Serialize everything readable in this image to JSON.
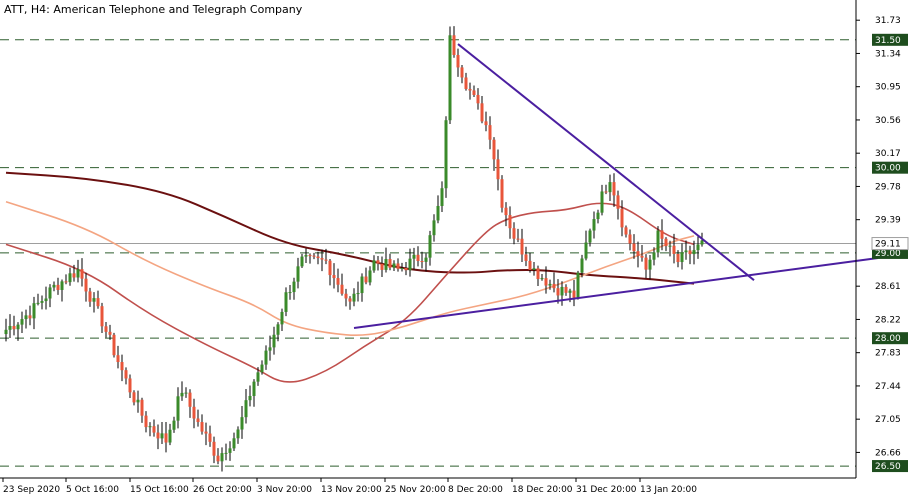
{
  "window": {
    "title": "ATT, H4:  American Telephone and Telegraph Company"
  },
  "colors": {
    "bull_candle": "#3a8a2a",
    "bear_candle": "#e8553a",
    "wick": "#000000",
    "ma_slow": "#6b1010",
    "ma_mid": "#c0504d",
    "ma_fast": "#f4a582",
    "trendline": "#4b1fa0",
    "level_line": "#2e5e2e",
    "level_tag_bg": "#1e4d1e",
    "current_price_line": "#9e9e9e",
    "axis": "#000000"
  },
  "chart_data": {
    "type": "candlestick",
    "title": "ATT, H4:  American Telephone and Telegraph Company",
    "symbol": "ATT",
    "timeframe": "H4",
    "instrument_name": "American Telephone and Telegraph Company",
    "y_range": [
      26.36,
      31.92
    ],
    "y_ticks": [
      "31.73",
      "31.34",
      "30.95",
      "30.56",
      "30.17",
      "29.78",
      "29.39",
      "28.61",
      "28.22",
      "27.83",
      "27.44",
      "27.05",
      "26.66"
    ],
    "x_ticks": [
      "23 Sep 2020",
      "5 Oct 16:00",
      "15 Oct 16:00",
      "26 Oct 20:00",
      "3 Nov 20:00",
      "13 Nov 20:00",
      "25 Nov 20:00",
      "8 Dec 20:00",
      "18 Dec 20:00",
      "31 Dec 20:00",
      "13 Jan 20:00"
    ],
    "bar_count": 175,
    "horizontal_levels": [
      {
        "label": "31.50",
        "value": 31.5
      },
      {
        "label": "30.00",
        "value": 30.0
      },
      {
        "label": "29.00",
        "value": 29.0
      },
      {
        "label": "28.00",
        "value": 28.0
      },
      {
        "label": "26.50",
        "value": 26.5
      }
    ],
    "current_price": {
      "label": "29.11",
      "value": 29.11
    },
    "price_anchors": [
      [
        0,
        28.1
      ],
      [
        6,
        28.3
      ],
      [
        12,
        28.6
      ],
      [
        18,
        28.8
      ],
      [
        24,
        28.2
      ],
      [
        30,
        27.5
      ],
      [
        35,
        27.0
      ],
      [
        40,
        26.8
      ],
      [
        44,
        27.4
      ],
      [
        48,
        27.0
      ],
      [
        53,
        26.6
      ],
      [
        58,
        26.9
      ],
      [
        62,
        27.5
      ],
      [
        66,
        27.9
      ],
      [
        70,
        28.5
      ],
      [
        74,
        28.9
      ],
      [
        80,
        28.9
      ],
      [
        86,
        28.4
      ],
      [
        92,
        28.9
      ],
      [
        98,
        28.8
      ],
      [
        105,
        29.0
      ],
      [
        109,
        29.7
      ],
      [
        111,
        31.5
      ],
      [
        115,
        31.0
      ],
      [
        121,
        30.4
      ],
      [
        124,
        29.6
      ],
      [
        127,
        29.2
      ],
      [
        132,
        28.8
      ],
      [
        137,
        28.6
      ],
      [
        142,
        28.5
      ],
      [
        146,
        29.3
      ],
      [
        151,
        29.9
      ],
      [
        155,
        29.2
      ],
      [
        160,
        28.8
      ],
      [
        163,
        29.2
      ],
      [
        168,
        28.9
      ],
      [
        174,
        29.1
      ]
    ],
    "moving_averages": [
      {
        "role": "slow",
        "points": [
          [
            0,
            29.94
          ],
          [
            20,
            29.88
          ],
          [
            40,
            29.72
          ],
          [
            55,
            29.42
          ],
          [
            70,
            29.1
          ],
          [
            85,
            28.98
          ],
          [
            100,
            28.8
          ],
          [
            115,
            28.76
          ],
          [
            125,
            28.8
          ],
          [
            135,
            28.8
          ],
          [
            145,
            28.74
          ],
          [
            160,
            28.7
          ],
          [
            172,
            28.64
          ]
        ]
      },
      {
        "role": "mid",
        "points": [
          [
            0,
            29.1
          ],
          [
            20,
            28.8
          ],
          [
            35,
            28.3
          ],
          [
            50,
            27.92
          ],
          [
            62,
            27.66
          ],
          [
            70,
            27.44
          ],
          [
            80,
            27.6
          ],
          [
            90,
            27.92
          ],
          [
            100,
            28.2
          ],
          [
            110,
            28.74
          ],
          [
            120,
            29.26
          ],
          [
            125,
            29.4
          ],
          [
            132,
            29.48
          ],
          [
            140,
            29.5
          ],
          [
            148,
            29.6
          ],
          [
            155,
            29.54
          ],
          [
            165,
            29.2
          ],
          [
            172,
            29.1
          ]
        ]
      },
      {
        "role": "fast",
        "points": [
          [
            0,
            29.6
          ],
          [
            20,
            29.3
          ],
          [
            35,
            28.9
          ],
          [
            50,
            28.6
          ],
          [
            62,
            28.4
          ],
          [
            70,
            28.16
          ],
          [
            80,
            28.06
          ],
          [
            90,
            28.02
          ],
          [
            100,
            28.14
          ],
          [
            110,
            28.3
          ],
          [
            120,
            28.4
          ],
          [
            130,
            28.5
          ],
          [
            140,
            28.66
          ],
          [
            150,
            28.84
          ],
          [
            160,
            29.0
          ],
          [
            167,
            29.14
          ],
          [
            172,
            29.2
          ]
        ]
      }
    ],
    "trendlines": [
      {
        "role": "upper",
        "from": [
          113,
          31.45
        ],
        "to": [
          187,
          28.68
        ]
      },
      {
        "role": "lower",
        "from": [
          87,
          28.12
        ],
        "to": [
          218,
          28.94
        ]
      }
    ],
    "grid": false,
    "legend": "none"
  }
}
